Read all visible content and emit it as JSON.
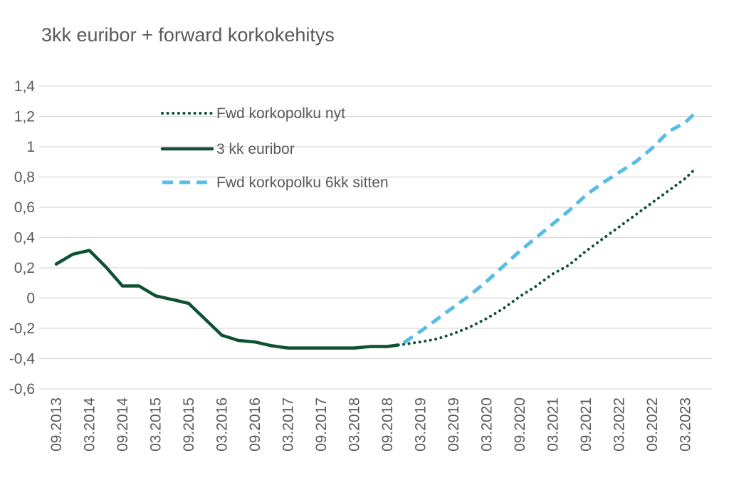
{
  "chart_data": {
    "type": "line",
    "title": "3kk euribor + forward korkokehitys",
    "xlabel": "",
    "ylabel": "",
    "ylim": [
      -0.6,
      1.4
    ],
    "yticks": [
      "1,4",
      "1,2",
      "1",
      "0,8",
      "0,6",
      "0,4",
      "0,2",
      "0",
      "-0,2",
      "-0,4",
      "-0,6"
    ],
    "ytick_values": [
      1.4,
      1.2,
      1.0,
      0.8,
      0.6,
      0.4,
      0.2,
      0.0,
      -0.2,
      -0.4,
      -0.6
    ],
    "x_tick_labels": [
      "09.2013",
      "03.2014",
      "09.2014",
      "03.2015",
      "09.2015",
      "03.2016",
      "09.2016",
      "03.2017",
      "09.2017",
      "03.2018",
      "09.2018",
      "03.2019",
      "09.2019",
      "03.2020",
      "09.2020",
      "03.2021",
      "09.2021",
      "03.2022",
      "09.2022",
      "03.2023"
    ],
    "grid": true,
    "legend_position": "top-left",
    "series": [
      {
        "name": "Fwd korkopolku nyt",
        "style": "dotted",
        "color": "#0f5132",
        "points": [
          [
            "11.2018",
            -0.31
          ],
          [
            "12.2018",
            -0.305
          ],
          [
            "03.2019",
            -0.29
          ],
          [
            "06.2019",
            -0.27
          ],
          [
            "09.2019",
            -0.235
          ],
          [
            "12.2019",
            -0.19
          ],
          [
            "03.2020",
            -0.135
          ],
          [
            "06.2020",
            -0.07
          ],
          [
            "09.2020",
            0.01
          ],
          [
            "12.2020",
            0.08
          ],
          [
            "03.2021",
            0.16
          ],
          [
            "06.2021",
            0.22
          ],
          [
            "09.2021",
            0.31
          ],
          [
            "12.2021",
            0.39
          ],
          [
            "03.2022",
            0.47
          ],
          [
            "06.2022",
            0.55
          ],
          [
            "09.2022",
            0.63
          ],
          [
            "12.2022",
            0.71
          ],
          [
            "03.2023",
            0.79
          ],
          [
            "05.2023",
            0.86
          ]
        ]
      },
      {
        "name": "3 kk euribor",
        "style": "solid",
        "color": "#0f5132",
        "points": [
          [
            "09.2013",
            0.225
          ],
          [
            "12.2013",
            0.29
          ],
          [
            "03.2014",
            0.315
          ],
          [
            "06.2014",
            0.205
          ],
          [
            "09.2014",
            0.08
          ],
          [
            "12.2014",
            0.08
          ],
          [
            "03.2015",
            0.015
          ],
          [
            "06.2015",
            -0.01
          ],
          [
            "09.2015",
            -0.035
          ],
          [
            "12.2015",
            -0.14
          ],
          [
            "03.2016",
            -0.245
          ],
          [
            "06.2016",
            -0.28
          ],
          [
            "09.2016",
            -0.29
          ],
          [
            "12.2016",
            -0.315
          ],
          [
            "03.2017",
            -0.33
          ],
          [
            "06.2017",
            -0.33
          ],
          [
            "09.2017",
            -0.33
          ],
          [
            "12.2017",
            -0.33
          ],
          [
            "03.2018",
            -0.33
          ],
          [
            "06.2018",
            -0.32
          ],
          [
            "09.2018",
            -0.32
          ],
          [
            "11.2018",
            -0.31
          ]
        ]
      },
      {
        "name": "Fwd korkopolku 6kk sitten",
        "style": "dashed",
        "color": "#57bde6",
        "points": [
          [
            "12.2018",
            -0.295
          ],
          [
            "03.2019",
            -0.22
          ],
          [
            "06.2019",
            -0.14
          ],
          [
            "09.2019",
            -0.06
          ],
          [
            "12.2019",
            0.02
          ],
          [
            "03.2020",
            0.11
          ],
          [
            "06.2020",
            0.21
          ],
          [
            "09.2020",
            0.31
          ],
          [
            "12.2020",
            0.4
          ],
          [
            "03.2021",
            0.49
          ],
          [
            "06.2021",
            0.58
          ],
          [
            "09.2021",
            0.68
          ],
          [
            "12.2021",
            0.76
          ],
          [
            "03.2022",
            0.83
          ],
          [
            "06.2022",
            0.9
          ],
          [
            "09.2022",
            0.99
          ],
          [
            "12.2022",
            1.1
          ],
          [
            "03.2023",
            1.16
          ],
          [
            "05.2023",
            1.23
          ]
        ]
      }
    ]
  }
}
